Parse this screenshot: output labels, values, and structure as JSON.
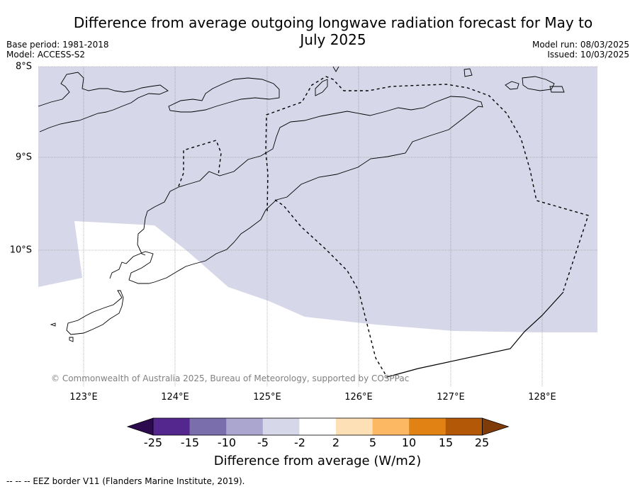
{
  "title": "Difference from average outgoing longwave radiation forecast for May to July 2025",
  "meta_left": {
    "base_period": "Base period: 1981-2018",
    "model": "Model: ACCESS-S2"
  },
  "meta_right": {
    "model_run": "Model run: 08/03/2025",
    "issued": "Issued: 10/03/2025"
  },
  "latitudes": [
    {
      "label": "8°S",
      "value": -8
    },
    {
      "label": "9°S",
      "value": -9
    },
    {
      "label": "10°S",
      "value": -10
    }
  ],
  "longitudes": [
    {
      "label": "123°E",
      "value": 123
    },
    {
      "label": "124°E",
      "value": 124
    },
    {
      "label": "125°E",
      "value": 125
    },
    {
      "label": "126°E",
      "value": 126
    },
    {
      "label": "127°E",
      "value": 127
    },
    {
      "label": "128°E",
      "value": 128
    }
  ],
  "copyright": "© Commonwealth of Australia 2025, Bureau of Meteorology, supported by COSPPac",
  "colorbar": {
    "colors": [
      "#2d0a4e",
      "#54278f",
      "#7b6ead",
      "#aaa6d0",
      "#d7d7ea",
      "#ffffff",
      "#fde0b6",
      "#fdb863",
      "#e08214",
      "#b35806",
      "#7f3b08"
    ],
    "ticks": [
      "-25",
      "-15",
      "-10",
      "-5",
      "-2",
      "2",
      "5",
      "10",
      "15",
      "25"
    ],
    "label": "Difference from average (W/m2)"
  },
  "shading": {
    "category": "-5 to -2",
    "color": "#d7d7ea"
  },
  "footer": "--  --  -- EEZ border V11 (Flanders Marine Institute, 2019)."
}
